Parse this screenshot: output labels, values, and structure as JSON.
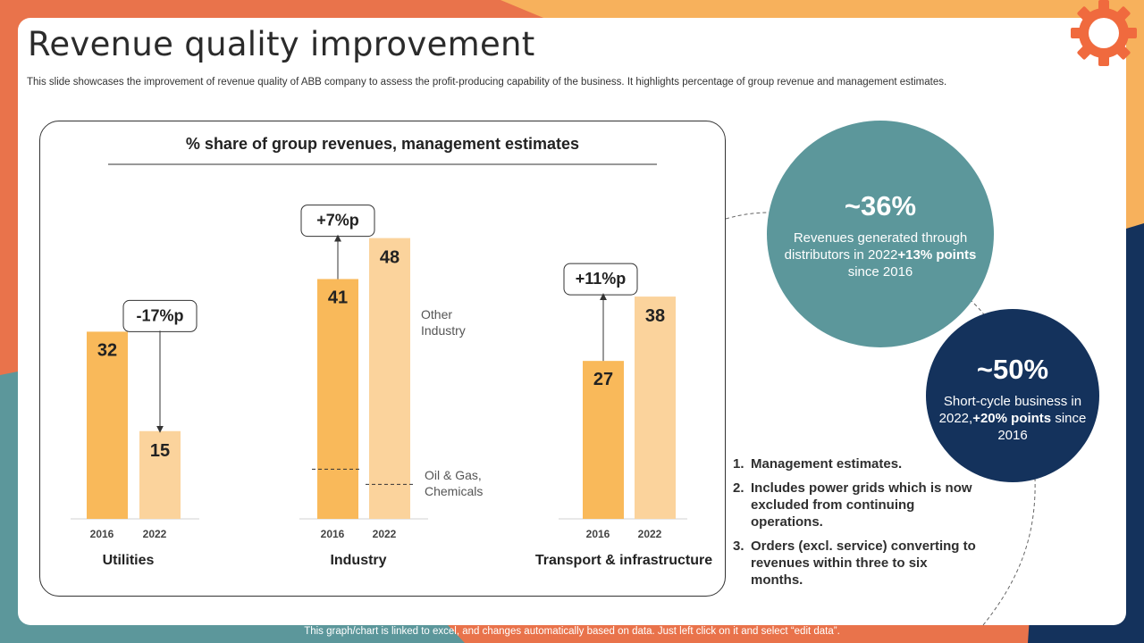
{
  "page": {
    "title": "Revenue quality improvement",
    "subtitle": "This slide showcases the improvement of revenue quality of ABB company to assess the profit-producing capability of the business. It highlights percentage of group revenue and management estimates.",
    "footer": "This graph/chart is linked to excel, and changes automatically based on data. Just left click on it and select “edit data”."
  },
  "colors": {
    "bar_2016": "#F9B95A",
    "bar_2022": "#FBD39C",
    "teal": "#5C979B",
    "navy": "#14325C",
    "orange": "#E9734B",
    "gold": "#F7B15C"
  },
  "chart_data": {
    "type": "bar",
    "title": "% share of group revenues, management estimates",
    "categories": [
      "Utilities",
      "Industry",
      "Transport & infrastructure"
    ],
    "x": [
      "2016",
      "2022"
    ],
    "series": [
      {
        "values": [
          32,
          41,
          27
        ]
      },
      {
        "values": [
          15,
          48,
          38
        ]
      }
    ],
    "changes": [
      "-17%p",
      "+7%p",
      "+11%p"
    ],
    "annotations": [
      "Other Industry",
      "Oil & Gas, Chemicals"
    ],
    "industry_split_level": 8.5,
    "ylim": [
      0,
      50
    ],
    "grid": false,
    "legend": "none"
  },
  "stats": [
    {
      "value": "~36%",
      "desc_pre": "Revenues generated through distributors in 2022",
      "desc_bold": "+13% points",
      "desc_post": " since 2016"
    },
    {
      "value": "~50%",
      "desc_pre": "Short-cycle business in 2022,",
      "desc_bold": "+20% points",
      "desc_post": " since 2016"
    }
  ],
  "notes": [
    {
      "num": "1.",
      "text": "Management estimates."
    },
    {
      "num": "2.",
      "text": "Includes power grids which is now excluded from continuing operations."
    },
    {
      "num": "3.",
      "text": "Orders (excl. service) converting to revenues within three to six months."
    }
  ],
  "icons": {
    "gear": "gear-icon"
  }
}
